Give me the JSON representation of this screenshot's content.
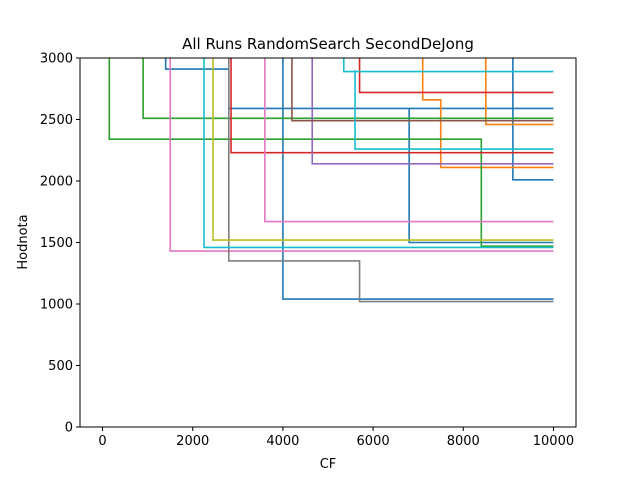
{
  "chart_data": {
    "type": "line",
    "title": "All Runs RandomSearch SecondDeJong",
    "xlabel": "CF",
    "ylabel": "Hodnota",
    "xlim": [
      -500,
      10500
    ],
    "ylim": [
      0,
      3000
    ],
    "xticks": [
      0,
      2000,
      4000,
      6000,
      8000,
      10000
    ],
    "yticks": [
      0,
      500,
      1000,
      1500,
      2000,
      2500,
      3000
    ],
    "grid": false,
    "legend": "none",
    "step": "post",
    "series": [
      {
        "color": "#1f77b4",
        "x": [
          1400,
          1400,
          2800,
          2800,
          10000
        ],
        "y": [
          3000,
          2910,
          2910,
          2590,
          2590
        ],
        "extra": null
      },
      {
        "color": "#1f77b4",
        "x": [
          4000,
          4000,
          10000
        ],
        "y": [
          3000,
          1040,
          1040
        ]
      },
      {
        "color": "#1f77b4",
        "x": [
          9100,
          9100,
          10000
        ],
        "y": [
          3000,
          2010,
          2010
        ]
      },
      {
        "color": "#1f77b4",
        "x": [
          6800,
          6800,
          10000
        ],
        "y": [
          2590,
          1500,
          1500
        ]
      },
      {
        "color": "#ff7f0e",
        "x": [
          7100,
          7100,
          7500,
          7500,
          10000
        ],
        "y": [
          3000,
          2660,
          2660,
          2110,
          2110
        ]
      },
      {
        "color": "#ff7f0e",
        "x": [
          8500,
          8500,
          10000
        ],
        "y": [
          3000,
          2460,
          2460
        ]
      },
      {
        "color": "#2ca02c",
        "x": [
          150,
          150,
          8400,
          8400,
          10000
        ],
        "y": [
          3000,
          2340,
          2340,
          1470,
          1470
        ]
      },
      {
        "color": "#2ca02c",
        "x": [
          900,
          900,
          10000
        ],
        "y": [
          3000,
          2510,
          2510
        ]
      },
      {
        "color": "#d62728",
        "x": [
          2850,
          2850,
          10000
        ],
        "y": [
          3000,
          2230,
          2230
        ]
      },
      {
        "color": "#d62728",
        "x": [
          5700,
          5700,
          10000
        ],
        "y": [
          3000,
          2720,
          2720
        ]
      },
      {
        "color": "#9467bd",
        "x": [
          4650,
          4650,
          10000
        ],
        "y": [
          3000,
          2140,
          2140
        ]
      },
      {
        "color": "#8c564b",
        "x": [
          4200,
          4200,
          10000
        ],
        "y": [
          3000,
          2490,
          2490
        ]
      },
      {
        "color": "#e377c2",
        "x": [
          1500,
          1500,
          10000
        ],
        "y": [
          3000,
          1430,
          1430
        ]
      },
      {
        "color": "#e377c2",
        "x": [
          3600,
          3600,
          10000
        ],
        "y": [
          3000,
          1670,
          1670
        ]
      },
      {
        "color": "#7f7f7f",
        "x": [
          2800,
          2800,
          5700,
          5700,
          10000
        ],
        "y": [
          3000,
          1350,
          1350,
          1020,
          1020
        ]
      },
      {
        "color": "#bcbd22",
        "x": [
          2450,
          2450,
          10000
        ],
        "y": [
          3000,
          1520,
          1520
        ]
      },
      {
        "color": "#17becf",
        "x": [
          2250,
          2250,
          10000
        ],
        "y": [
          3000,
          1460,
          1460
        ]
      },
      {
        "color": "#17becf",
        "x": [
          5600,
          5600,
          10000
        ],
        "y": [
          2900,
          2260,
          2260
        ]
      },
      {
        "color": "#17becf",
        "x": [
          5350,
          5350,
          10000
        ],
        "y": [
          3000,
          2890,
          2890
        ]
      }
    ]
  }
}
